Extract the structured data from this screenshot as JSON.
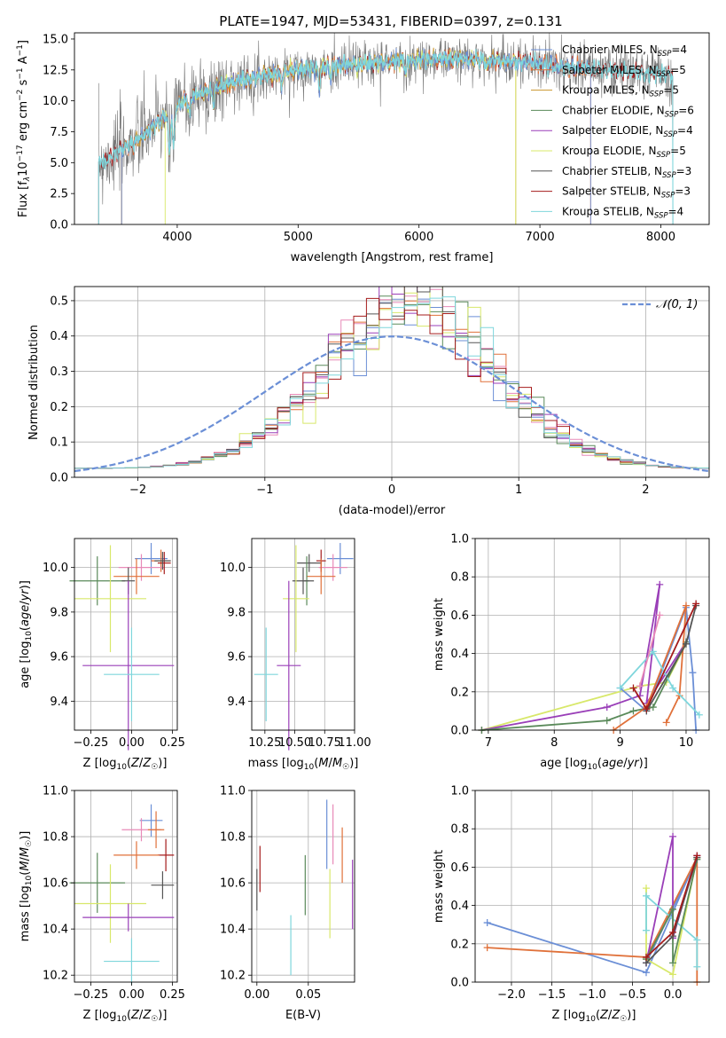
{
  "figure_title": "PLATE=1947, MJD=53431, FIBERID=0397, z=0.131",
  "colors": {
    "Chabrier MILES": "#6b8fd6",
    "Salpeter MILES": "#e0713a",
    "Kroupa MILES": "#c9962b",
    "Chabrier ELODIE": "#5a8a5a",
    "Salpeter ELODIE": "#9a3fb8",
    "Kroupa ELODIE": "#d8e86a",
    "Chabrier STELIB": "#555555",
    "Salpeter STELIB": "#a51c1c",
    "Kroupa STELIB": "#7fd6dc",
    "Pink": "#e88ab8",
    "Normal": "#6b8fd6"
  },
  "chart_data": [
    {
      "id": "spectrum",
      "type": "line",
      "xlabel": "wavelength [Angstrom, rest frame]",
      "ylabel": "Flux [f",
      "ylabel_full": "Flux [fλ10⁻¹⁷ erg cm⁻² s⁻¹ A⁻¹]",
      "xlim": [
        3150,
        8400
      ],
      "ylim": [
        0,
        15.5
      ],
      "xticks": [
        "4000",
        "5000",
        "6000",
        "7000",
        "8000"
      ],
      "yticks": [
        "0.0",
        "2.5",
        "5.0",
        "7.5",
        "10.0",
        "12.5",
        "15.0"
      ],
      "legend_position": "top-right",
      "legend": [
        {
          "label": "Chabrier MILES, N",
          "sub": "SSP",
          "eq": "=4",
          "series": "Chabrier MILES"
        },
        {
          "label": "Salpeter MILES, N",
          "sub": "SSP",
          "eq": "=5",
          "series": "Salpeter MILES"
        },
        {
          "label": "Kroupa MILES, N",
          "sub": "SSP",
          "eq": "=5",
          "series": "Kroupa MILES"
        },
        {
          "label": "Chabrier ELODIE, N",
          "sub": "SSP",
          "eq": "=6",
          "series": "Chabrier ELODIE"
        },
        {
          "label": "Salpeter ELODIE, N",
          "sub": "SSP",
          "eq": "=4",
          "series": "Salpeter ELODIE"
        },
        {
          "label": "Kroupa ELODIE, N",
          "sub": "SSP",
          "eq": "=5",
          "series": "Kroupa ELODIE"
        },
        {
          "label": "Chabrier STELIB, N",
          "sub": "SSP",
          "eq": "=3",
          "series": "Chabrier STELIB"
        },
        {
          "label": "Salpeter STELIB, N",
          "sub": "SSP",
          "eq": "=3",
          "series": "Salpeter STELIB"
        },
        {
          "label": "Kroupa STELIB, N",
          "sub": "SSP",
          "eq": "=4",
          "series": "Kroupa STELIB"
        }
      ],
      "continuum": [
        [
          3350,
          5.0
        ],
        [
          3500,
          5.8
        ],
        [
          3700,
          7.0
        ],
        [
          3900,
          8.8
        ],
        [
          4100,
          10.3
        ],
        [
          4300,
          11.0
        ],
        [
          4500,
          11.6
        ],
        [
          4800,
          12.2
        ],
        [
          5000,
          12.5
        ],
        [
          5400,
          12.9
        ],
        [
          5800,
          13.2
        ],
        [
          6200,
          13.4
        ],
        [
          6600,
          13.3
        ],
        [
          7000,
          13.0
        ],
        [
          7400,
          12.6
        ],
        [
          7800,
          12.3
        ],
        [
          8100,
          12.1
        ]
      ],
      "model_ranges": {
        "Chabrier MILES": [
          3540,
          7420
        ],
        "Salpeter MILES": [
          3540,
          7420
        ],
        "Kroupa MILES": [
          3540,
          6800
        ],
        "Kroupa ELODIE": [
          3900,
          6800
        ],
        "Kroupa STELIB": [
          3350,
          8100
        ]
      }
    },
    {
      "id": "residuals",
      "type": "histogram",
      "xlabel": "(data-model)/error",
      "ylabel": "Normed distribution",
      "xlim": [
        -2.5,
        2.5
      ],
      "ylim": [
        0,
        0.54
      ],
      "xticks": [
        "−2",
        "−1",
        "0",
        "1",
        "2"
      ],
      "yticks": [
        "0.0",
        "0.1",
        "0.2",
        "0.3",
        "0.4",
        "0.5"
      ],
      "grid": true,
      "legend_position": "top-right",
      "legend": [
        {
          "label": "𝒩(0, 1)",
          "series": "Normal"
        }
      ],
      "bin_width": 0.1
    },
    {
      "id": "age-vs-Z",
      "type": "errorbar",
      "xlabel": "Z [log",
      "xlabel_full": "Z [log₁₀(Z/Z☉)]",
      "ylabel_full": "age  [log₁₀(age/yr)]",
      "xlim": [
        -0.35,
        0.28
      ],
      "ylim": [
        9.27,
        10.13
      ],
      "xticks": [
        "−0.25",
        "0.00",
        "0.25"
      ],
      "yticks": [
        "9.4",
        "9.6",
        "9.8",
        "10.0"
      ],
      "grid": true,
      "points": [
        {
          "s": "Chabrier MILES",
          "x": 0.12,
          "xe": 0.1,
          "y": 10.04,
          "ye": 0.07
        },
        {
          "s": "Salpeter MILES",
          "x": 0.18,
          "xe": 0.06,
          "y": 10.03,
          "ye": 0.05
        },
        {
          "s": "Pink",
          "x": 0.06,
          "xe": 0.14,
          "y": 10.0,
          "ye": 0.06
        },
        {
          "s": "Salpeter STELIB",
          "x": 0.2,
          "xe": 0.04,
          "y": 10.02,
          "ye": 0.05
        },
        {
          "s": "Chabrier STELIB",
          "x": 0.19,
          "xe": 0.05,
          "y": 10.03,
          "ye": 0.04
        },
        {
          "s": "Salpeter MILES",
          "x": 0.03,
          "xe": 0.14,
          "y": 9.96,
          "ye": 0.08
        },
        {
          "s": "Chabrier ELODIE",
          "x": -0.21,
          "xe": 0.17,
          "y": 9.94,
          "ye": 0.11
        },
        {
          "s": "Chabrier STELIB",
          "x": -0.02,
          "xe": 0.04,
          "y": 9.94,
          "ye": 0.06
        },
        {
          "s": "Kroupa ELODIE",
          "x": -0.13,
          "xe": 0.22,
          "y": 9.86,
          "ye": 0.24
        },
        {
          "s": "Salpeter ELODIE",
          "x": -0.02,
          "xe": 0.28,
          "y": 9.56,
          "ye": 0.38
        },
        {
          "s": "Kroupa STELIB",
          "x": 0.0,
          "xe": 0.17,
          "y": 9.52,
          "ye": 0.21
        }
      ]
    },
    {
      "id": "age-vs-mass",
      "type": "errorbar",
      "xlabel_full": "mass [log₁₀(M/M☉)]",
      "xlim": [
        10.14,
        11.0
      ],
      "ylim": [
        9.27,
        10.13
      ],
      "xticks": [
        "10.25",
        "10.50",
        "10.75",
        "11.00"
      ],
      "yticks": [
        "9.4",
        "9.6",
        "9.8",
        "10.0"
      ],
      "grid": true,
      "points": [
        {
          "s": "Chabrier MILES",
          "x": 10.88,
          "xe": 0.11,
          "y": 10.04,
          "ye": 0.07
        },
        {
          "s": "Pink",
          "x": 10.82,
          "xe": 0.12,
          "y": 10.0,
          "ye": 0.06
        },
        {
          "s": "Chabrier STELIB",
          "x": 10.62,
          "xe": 0.1,
          "y": 10.02,
          "ye": 0.04
        },
        {
          "s": "Salpeter STELIB",
          "x": 10.72,
          "xe": 0.04,
          "y": 10.03,
          "ye": 0.05
        },
        {
          "s": "Salpeter MILES",
          "x": 10.72,
          "xe": 0.12,
          "y": 9.96,
          "ye": 0.08
        },
        {
          "s": "Chabrier ELODIE",
          "x": 10.6,
          "xe": 0.02,
          "y": 9.94,
          "ye": 0.11
        },
        {
          "s": "Chabrier STELIB",
          "x": 10.57,
          "xe": 0.09,
          "y": 9.94,
          "ye": 0.06
        },
        {
          "s": "Kroupa ELODIE",
          "x": 10.51,
          "xe": 0.11,
          "y": 9.86,
          "ye": 0.24
        },
        {
          "s": "Salpeter ELODIE",
          "x": 10.45,
          "xe": 0.1,
          "y": 9.56,
          "ye": 0.38
        },
        {
          "s": "Kroupa STELIB",
          "x": 10.26,
          "xe": 0.1,
          "y": 9.52,
          "ye": 0.21
        }
      ]
    },
    {
      "id": "weight-vs-age",
      "type": "line",
      "xlabel_full": "age  [log₁₀(age/yr)]",
      "ylabel": "mass weight",
      "xlim": [
        6.8,
        10.35
      ],
      "ylim": [
        0,
        1.0
      ],
      "xticks": [
        "7",
        "8",
        "9",
        "10"
      ],
      "yticks": [
        "0.0",
        "0.2",
        "0.4",
        "0.6",
        "0.8",
        "1.0"
      ],
      "grid": true,
      "series": [
        {
          "s": "Kroupa ELODIE",
          "pts": [
            [
              6.9,
              0.0
            ],
            [
              9.3,
              0.23
            ],
            [
              9.7,
              0.25
            ],
            [
              10.0,
              0.45
            ]
          ]
        },
        {
          "s": "Salpeter ELODIE",
          "pts": [
            [
              6.9,
              0.0
            ],
            [
              8.8,
              0.12
            ],
            [
              9.3,
              0.18
            ],
            [
              9.6,
              0.76
            ],
            [
              9.4,
              0.14
            ],
            [
              10.0,
              0.46
            ]
          ]
        },
        {
          "s": "Chabrier ELODIE",
          "pts": [
            [
              6.9,
              0.0
            ],
            [
              8.8,
              0.05
            ],
            [
              9.2,
              0.1
            ],
            [
              9.5,
              0.12
            ],
            [
              10.0,
              0.46
            ]
          ]
        },
        {
          "s": "Chabrier MILES",
          "pts": [
            [
              9.0,
              0.22
            ],
            [
              9.4,
              0.1
            ],
            [
              10.0,
              0.64
            ],
            [
              10.1,
              0.3
            ],
            [
              10.15,
              0.0
            ]
          ]
        },
        {
          "s": "Salpeter MILES",
          "pts": [
            [
              8.9,
              0.0
            ],
            [
              9.4,
              0.12
            ],
            [
              10.0,
              0.65
            ],
            [
              9.9,
              0.18
            ],
            [
              9.7,
              0.04
            ]
          ]
        },
        {
          "s": "Kroupa STELIB",
          "pts": [
            [
              9.0,
              0.22
            ],
            [
              9.5,
              0.41
            ],
            [
              9.8,
              0.22
            ],
            [
              10.2,
              0.08
            ]
          ]
        },
        {
          "s": "Chabrier STELIB",
          "pts": [
            [
              9.4,
              0.1
            ],
            [
              10.0,
              0.45
            ],
            [
              10.15,
              0.65
            ]
          ]
        },
        {
          "s": "Salpeter STELIB",
          "pts": [
            [
              9.2,
              0.22
            ],
            [
              9.4,
              0.11
            ],
            [
              10.15,
              0.66
            ]
          ]
        },
        {
          "s": "Pink",
          "pts": [
            [
              9.3,
              0.23
            ],
            [
              9.6,
              0.6
            ]
          ]
        }
      ]
    },
    {
      "id": "mass-vs-Z",
      "type": "errorbar",
      "xlabel_full": "Z [log₁₀(Z/Z☉)]",
      "ylabel_full": "mass [log₁₀(M/M☉)]",
      "xlim": [
        -0.35,
        0.28
      ],
      "ylim": [
        10.17,
        11.0
      ],
      "xticks": [
        "−0.25",
        "0.00",
        "0.25"
      ],
      "yticks": [
        "10.2",
        "10.4",
        "10.6",
        "10.8",
        "11.0"
      ],
      "grid": true,
      "points": [
        {
          "s": "Chabrier MILES",
          "x": 0.12,
          "xe": 0.07,
          "y": 10.87,
          "ye": 0.07
        },
        {
          "s": "Pink",
          "x": 0.06,
          "xe": 0.12,
          "y": 10.83,
          "ye": 0.05
        },
        {
          "s": "Salpeter MILES",
          "x": 0.15,
          "xe": 0.05,
          "y": 10.83,
          "ye": 0.08
        },
        {
          "s": "Salpeter STELIB",
          "x": 0.21,
          "xe": 0.05,
          "y": 10.72,
          "ye": 0.07
        },
        {
          "s": "Salpeter MILES",
          "x": 0.03,
          "xe": 0.14,
          "y": 10.72,
          "ye": 0.06
        },
        {
          "s": "Chabrier ELODIE",
          "x": -0.21,
          "xe": 0.17,
          "y": 10.6,
          "ye": 0.13
        },
        {
          "s": "Chabrier STELIB",
          "x": 0.19,
          "xe": 0.07,
          "y": 10.59,
          "ye": 0.06
        },
        {
          "s": "Kroupa ELODIE",
          "x": -0.13,
          "xe": 0.22,
          "y": 10.51,
          "ye": 0.17
        },
        {
          "s": "Salpeter ELODIE",
          "x": -0.02,
          "xe": 0.28,
          "y": 10.45,
          "ye": 0.06
        },
        {
          "s": "Kroupa STELIB",
          "x": 0.0,
          "xe": 0.17,
          "y": 10.26,
          "ye": 0.1
        }
      ]
    },
    {
      "id": "mass-vs-ebv",
      "type": "errorbar",
      "xlabel": "E(B-V)",
      "xlim": [
        -0.005,
        0.095
      ],
      "ylim": [
        10.17,
        11.0
      ],
      "xticks": [
        "0.00",
        "0.05"
      ],
      "yticks": [
        "10.2",
        "10.4",
        "10.6",
        "10.8",
        "11.0"
      ],
      "grid": true,
      "points": [
        {
          "s": "Chabrier STELIB",
          "x": 0.0,
          "y": 10.57,
          "ye": 0.09
        },
        {
          "s": "Salpeter STELIB",
          "x": 0.003,
          "y": 10.66,
          "ye": 0.1
        },
        {
          "s": "Kroupa STELIB",
          "x": 0.033,
          "y": 10.33,
          "ye": 0.13
        },
        {
          "s": "Chabrier ELODIE",
          "x": 0.047,
          "y": 10.59,
          "ye": 0.13
        },
        {
          "s": "Chabrier MILES",
          "x": 0.068,
          "y": 10.81,
          "ye": 0.15
        },
        {
          "s": "Pink",
          "x": 0.074,
          "y": 10.81,
          "ye": 0.13
        },
        {
          "s": "Kroupa ELODIE",
          "x": 0.071,
          "y": 10.51,
          "ye": 0.15
        },
        {
          "s": "Salpeter MILES",
          "x": 0.083,
          "y": 10.72,
          "ye": 0.12
        },
        {
          "s": "Salpeter ELODIE",
          "x": 0.093,
          "y": 10.55,
          "ye": 0.15
        }
      ]
    },
    {
      "id": "weight-vs-Z",
      "type": "line",
      "xlabel_full": "Z [log₁₀(Z/Z☉)]",
      "ylabel": "mass weight",
      "xlim": [
        -2.45,
        0.45
      ],
      "ylim": [
        0,
        1.0
      ],
      "xticks": [
        "−2.0",
        "−1.5",
        "−1.0",
        "−0.5",
        "0.0"
      ],
      "yticks": [
        "0.0",
        "0.2",
        "0.4",
        "0.6",
        "0.8",
        "1.0"
      ],
      "grid": true,
      "series": [
        {
          "s": "Chabrier MILES",
          "pts": [
            [
              -2.3,
              0.31
            ],
            [
              -0.33,
              0.05
            ],
            [
              0.3,
              0.65
            ],
            [
              -0.33,
              0.1
            ]
          ]
        },
        {
          "s": "Salpeter MILES",
          "pts": [
            [
              -2.3,
              0.18
            ],
            [
              -0.33,
              0.13
            ],
            [
              0.3,
              0.65
            ],
            [
              0.3,
              0.0
            ]
          ]
        },
        {
          "s": "Salpeter ELODIE",
          "pts": [
            [
              -0.33,
              0.1
            ],
            [
              0.0,
              0.76
            ],
            [
              0.0,
              0.23
            ],
            [
              0.3,
              0.66
            ]
          ]
        },
        {
          "s": "Kroupa ELODIE",
          "pts": [
            [
              -0.33,
              0.49
            ],
            [
              -0.33,
              0.12
            ],
            [
              0.0,
              0.04
            ],
            [
              0.3,
              0.65
            ]
          ]
        },
        {
          "s": "Kroupa STELIB",
          "pts": [
            [
              -0.33,
              0.27
            ],
            [
              -0.33,
              0.45
            ],
            [
              0.3,
              0.22
            ],
            [
              0.3,
              0.08
            ]
          ]
        },
        {
          "s": "Chabrier ELODIE",
          "pts": [
            [
              -0.33,
              0.12
            ],
            [
              0.0,
              0.38
            ],
            [
              0.0,
              0.1
            ],
            [
              0.3,
              0.64
            ]
          ]
        },
        {
          "s": "Chabrier STELIB",
          "pts": [
            [
              -0.33,
              0.1
            ],
            [
              0.0,
              0.24
            ],
            [
              0.3,
              0.65
            ]
          ]
        },
        {
          "s": "Salpeter STELIB",
          "pts": [
            [
              -0.33,
              0.13
            ],
            [
              0.0,
              0.26
            ],
            [
              0.3,
              0.66
            ]
          ]
        }
      ]
    }
  ]
}
